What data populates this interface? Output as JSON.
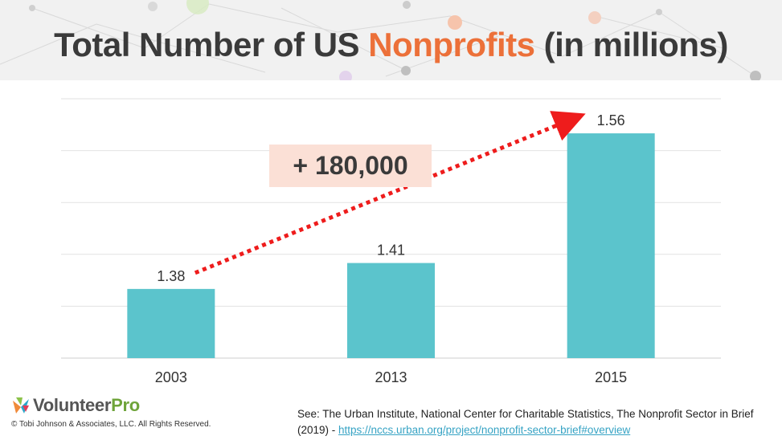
{
  "title": {
    "prefix": "Total Number of US ",
    "highlight": "Nonprofits",
    "suffix": " (in millions)"
  },
  "colors": {
    "bar": "#5bc4cc",
    "arrow": "#ee1c1c",
    "accent": "#ec7039",
    "callout_bg": "#fbe0d6",
    "gridline": "#e2e2e2"
  },
  "chart_data": {
    "type": "bar",
    "categories": [
      "2003",
      "2013",
      "2015"
    ],
    "values": [
      1.38,
      1.41,
      1.56
    ],
    "data_labels": [
      "1.38",
      "1.41",
      "1.56"
    ],
    "ylim": [
      1.3,
      1.6
    ],
    "grid": true,
    "annotation": {
      "text": "+ 180,000",
      "arrow": {
        "from": "2003",
        "to": "2015",
        "style": "dotted"
      }
    }
  },
  "footer": {
    "logo_main": "Volunteer",
    "logo_accent": "Pro",
    "copyright": "© Tobi Johnson & Associates, LLC. All Rights Reserved.",
    "source_text": "See: The Urban Institute, National Center for Charitable Statistics, The Nonprofit Sector in Brief (2019) - ",
    "source_link": "https://nccs.urban.org/project/nonprofit-sector-brief#overview"
  },
  "icons": {
    "logo": "volunteerpro-logo-icon",
    "arrow": "trend-arrow-icon"
  }
}
